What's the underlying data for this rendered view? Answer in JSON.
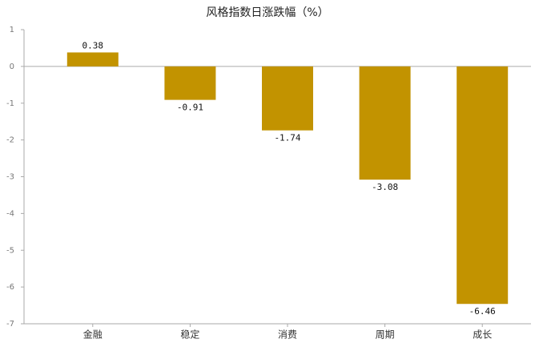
{
  "chart_data": {
    "type": "bar",
    "title": "风格指数日涨跌幅（%）",
    "categories": [
      "金融",
      "稳定",
      "消费",
      "周期",
      "成长"
    ],
    "values": [
      0.38,
      -0.91,
      -1.74,
      -3.08,
      -6.46
    ],
    "color": "#c29300",
    "ylim": [
      -7,
      1
    ],
    "yticks": [
      -7,
      -6,
      -5,
      -4,
      -3,
      -2,
      -1,
      0,
      1
    ]
  }
}
